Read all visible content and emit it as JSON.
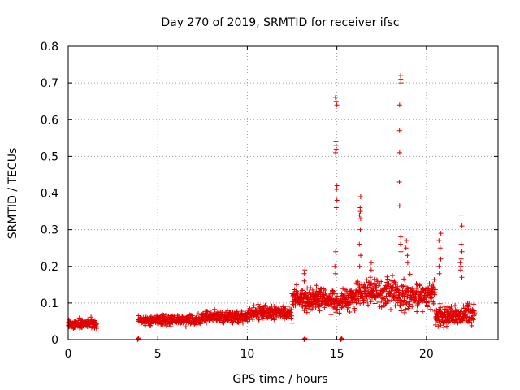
{
  "chart_data": {
    "type": "scatter",
    "title": "Day 270 of 2019, SRMTID for receiver ifsc",
    "xlabel": "GPS time / hours",
    "ylabel": "SRMTID / TECUs",
    "xlim": [
      0,
      24
    ],
    "ylim": [
      0,
      0.8
    ],
    "xticks": [
      0,
      5,
      10,
      15,
      20
    ],
    "yticks": [
      0,
      0.1,
      0.2,
      0.3,
      0.4,
      0.5,
      0.6,
      0.7,
      0.8
    ],
    "ytick_labels": [
      "0",
      "0.1",
      "0.2",
      "0.3",
      "0.4",
      "0.5",
      "0.6",
      "0.7",
      "0.8"
    ],
    "grid": true,
    "marker": "+",
    "color": "#e00000",
    "series": [
      {
        "name": "SRMTID",
        "segments": [
          {
            "x_start": 0.0,
            "x_end": 1.6,
            "base": 0.04,
            "spread": 0.018,
            "n": 130
          },
          {
            "x_start": 3.9,
            "x_end": 7.5,
            "base": 0.05,
            "spread": 0.02,
            "n": 260
          },
          {
            "x_start": 7.5,
            "x_end": 10.0,
            "base": 0.058,
            "spread": 0.024,
            "n": 200
          },
          {
            "x_start": 10.0,
            "x_end": 12.5,
            "base": 0.068,
            "spread": 0.026,
            "n": 200
          },
          {
            "x_start": 12.5,
            "x_end": 14.6,
            "base": 0.105,
            "spread": 0.04,
            "n": 200
          },
          {
            "x_start": 14.6,
            "x_end": 16.0,
            "base": 0.1,
            "spread": 0.05,
            "n": 110
          },
          {
            "x_start": 16.0,
            "x_end": 18.4,
            "base": 0.12,
            "spread": 0.05,
            "n": 190
          },
          {
            "x_start": 18.4,
            "x_end": 20.5,
            "base": 0.11,
            "spread": 0.055,
            "n": 170
          },
          {
            "x_start": 20.5,
            "x_end": 22.7,
            "base": 0.06,
            "spread": 0.04,
            "n": 180
          }
        ],
        "spikes": [
          {
            "x": 14.95,
            "values": [
              0.66,
              0.65,
              0.64,
              0.54,
              0.53,
              0.52,
              0.51,
              0.42,
              0.41,
              0.38,
              0.36,
              0.24,
              0.2,
              0.18
            ]
          },
          {
            "x": 16.3,
            "values": [
              0.39,
              0.36,
              0.35,
              0.34,
              0.33,
              0.3,
              0.26,
              0.23,
              0.2
            ]
          },
          {
            "x": 18.55,
            "values": [
              0.72,
              0.71,
              0.7,
              0.64,
              0.57,
              0.51,
              0.43,
              0.365,
              0.28,
              0.26,
              0.24
            ]
          },
          {
            "x": 18.9,
            "values": [
              0.27,
              0.25,
              0.23,
              0.21
            ]
          },
          {
            "x": 20.75,
            "values": [
              0.29,
              0.27,
              0.25,
              0.22,
              0.2,
              0.18
            ]
          },
          {
            "x": 21.95,
            "values": [
              0.34,
              0.31,
              0.26,
              0.24,
              0.22,
              0.21,
              0.2,
              0.19,
              0.17
            ]
          },
          {
            "x": 13.2,
            "values": [
              0.19,
              0.18,
              0.16
            ]
          },
          {
            "x": 16.9,
            "values": [
              0.21,
              0.19,
              0.17
            ]
          }
        ],
        "outliers": [
          {
            "x": 3.9,
            "y": 0.0
          },
          {
            "x": 15.25,
            "y": 0.0
          },
          {
            "x": 13.2,
            "y": 0.0
          }
        ]
      }
    ]
  }
}
